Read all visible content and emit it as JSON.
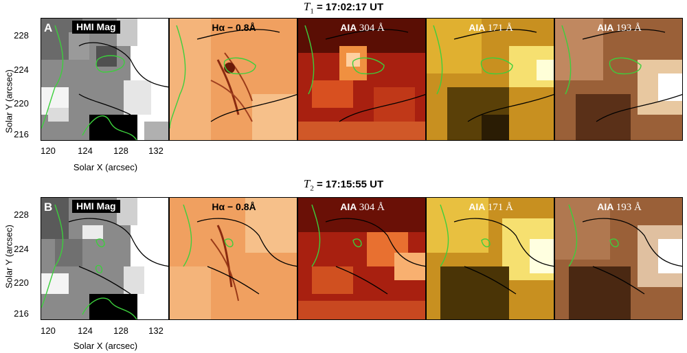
{
  "rows": [
    {
      "time_label": "= 17:02:17 UT",
      "t_symbol": "T",
      "t_sub": "1",
      "letter": "A"
    },
    {
      "time_label": "= 17:15:55 UT",
      "t_symbol": "T",
      "t_sub": "2",
      "letter": "B"
    }
  ],
  "panels": [
    {
      "label_bold": "HMI Mag",
      "label_wave": ""
    },
    {
      "label_bold": "Hα − 0.8Å",
      "label_wave": ""
    },
    {
      "label_bold": "AIA",
      "label_wave": "304 Å"
    },
    {
      "label_bold": "AIA",
      "label_wave": "171 Å"
    },
    {
      "label_bold": "AIA",
      "label_wave": "193 Å"
    }
  ],
  "axes": {
    "xlabel": "Solar X (arcsec)",
    "ylabel": "Solar Y (arcsec)",
    "xticks": [
      "120",
      "124",
      "128",
      "132"
    ],
    "yticks": [
      "228",
      "224",
      "220",
      "216"
    ]
  },
  "colors": {
    "green_contour": "#3ccf3c",
    "black_contour": "#000000",
    "halpha": "#f0a060",
    "aia304": "#a82010",
    "aia171": "#c89020",
    "aia193": "#9a6038"
  }
}
